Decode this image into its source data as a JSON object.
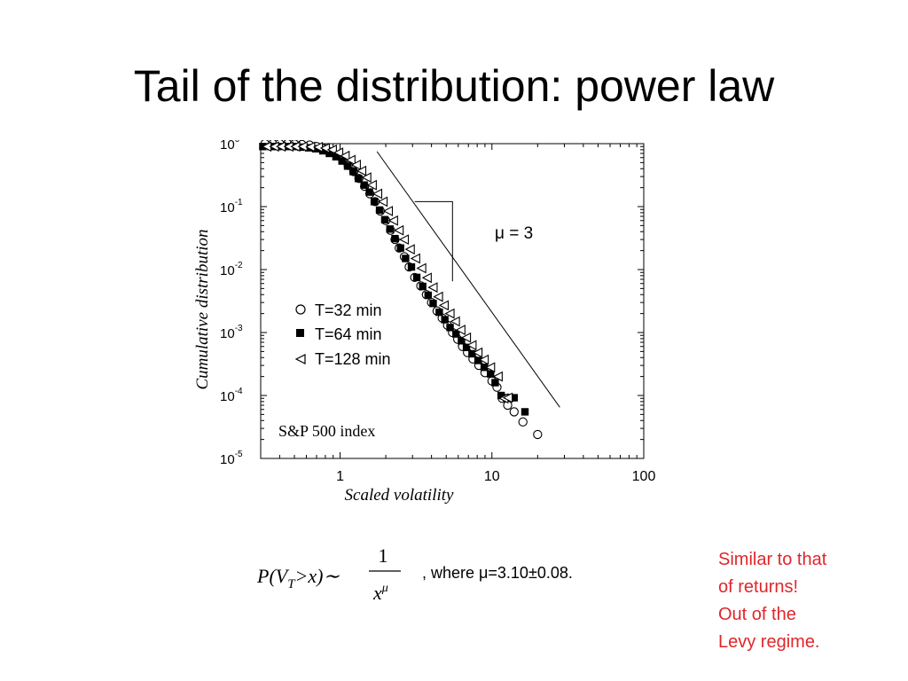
{
  "slide": {
    "title": "Tail of the distribution: power law"
  },
  "chart_data": {
    "type": "scatter",
    "xlabel": "Scaled volatility",
    "ylabel": "Cumulative distribution",
    "x_scale": "log",
    "y_scale": "log",
    "xlim": [
      0.3,
      100
    ],
    "ylim": [
      1e-05,
      1
    ],
    "x_ticks": [
      "1",
      "10",
      "100"
    ],
    "y_ticks": [
      {
        "base": "10",
        "exp": "0"
      },
      {
        "base": "10",
        "exp": "-1"
      },
      {
        "base": "10",
        "exp": "-2"
      },
      {
        "base": "10",
        "exp": "-3"
      },
      {
        "base": "10",
        "exp": "-4"
      },
      {
        "base": "10",
        "exp": "-5"
      }
    ],
    "grid": false,
    "legend_position": "left-center",
    "annotation_label": "S&P 500 index",
    "slope_label": "μ = 3",
    "reference_line": {
      "points": [
        [
          1.75,
          0.75
        ],
        [
          28.0,
          6.5e-05
        ]
      ]
    },
    "slope_triangle": {
      "points": [
        [
          3.1,
          0.12
        ],
        [
          5.5,
          0.12
        ],
        [
          5.5,
          0.0065
        ]
      ]
    },
    "series": [
      {
        "name": "T=32 min",
        "marker": "circle-open",
        "x": [
          0.32,
          0.36,
          0.4,
          0.45,
          0.5,
          0.56,
          0.63,
          0.7,
          0.78,
          0.86,
          0.95,
          1.04,
          1.13,
          1.23,
          1.33,
          1.45,
          1.57,
          1.7,
          1.84,
          2.0,
          2.15,
          2.3,
          2.45,
          2.65,
          2.85,
          3.1,
          3.4,
          3.7,
          4.0,
          4.35,
          4.7,
          5.1,
          5.5,
          5.95,
          6.4,
          6.9,
          7.5,
          8.2,
          9.0,
          10.0,
          10.8,
          11.7,
          12.7,
          14.0,
          16.0,
          20.0
        ],
        "y": [
          1.0,
          1.0,
          1.0,
          1.0,
          0.99,
          0.97,
          0.95,
          0.9,
          0.83,
          0.74,
          0.64,
          0.55,
          0.45,
          0.36,
          0.28,
          0.21,
          0.16,
          0.12,
          0.085,
          0.06,
          0.042,
          0.03,
          0.022,
          0.016,
          0.011,
          0.0075,
          0.0055,
          0.004,
          0.003,
          0.0022,
          0.0017,
          0.0013,
          0.001,
          0.00078,
          0.0006,
          0.00048,
          0.00038,
          0.0003,
          0.00023,
          0.00017,
          0.000135,
          9e-05,
          7e-05,
          5.5e-05,
          3.8e-05,
          2.4e-05
        ]
      },
      {
        "name": "T=64 min",
        "marker": "square-filled",
        "x": [
          0.31,
          0.35,
          0.39,
          0.44,
          0.49,
          0.55,
          0.62,
          0.69,
          0.77,
          0.85,
          0.94,
          1.03,
          1.12,
          1.22,
          1.32,
          1.44,
          1.56,
          1.68,
          1.82,
          1.97,
          2.13,
          2.3,
          2.5,
          2.7,
          2.95,
          3.2,
          3.5,
          3.8,
          4.1,
          4.5,
          4.9,
          5.3,
          5.8,
          6.3,
          6.8,
          7.4,
          8.1,
          8.9,
          9.8,
          10.5,
          11.5,
          12.5,
          13.2,
          14.0,
          16.5
        ],
        "y": [
          0.9,
          0.9,
          0.9,
          0.9,
          0.9,
          0.88,
          0.86,
          0.83,
          0.77,
          0.7,
          0.62,
          0.53,
          0.44,
          0.36,
          0.28,
          0.22,
          0.17,
          0.12,
          0.088,
          0.062,
          0.044,
          0.031,
          0.022,
          0.015,
          0.011,
          0.0075,
          0.0054,
          0.0039,
          0.0029,
          0.0021,
          0.0016,
          0.0012,
          0.00095,
          0.00074,
          0.00058,
          0.00046,
          0.00036,
          0.00028,
          0.00022,
          0.00016,
          0.0001,
          9.2e-05,
          9.2e-05,
          9.2e-05,
          5.5e-05
        ]
      },
      {
        "name": "T=128 min",
        "marker": "triangle-left-open",
        "x": [
          0.33,
          0.37,
          0.41,
          0.46,
          0.51,
          0.57,
          0.64,
          0.72,
          0.8,
          0.89,
          0.98,
          1.08,
          1.18,
          1.28,
          1.39,
          1.5,
          1.63,
          1.77,
          1.92,
          2.08,
          2.25,
          2.45,
          2.65,
          2.9,
          3.15,
          3.45,
          3.75,
          4.1,
          4.45,
          4.85,
          5.3,
          5.75,
          6.25,
          6.8,
          7.4,
          8.1,
          8.9,
          9.8,
          11.0,
          12.0,
          12.8
        ],
        "y": [
          0.9,
          0.9,
          0.9,
          0.9,
          0.9,
          0.9,
          0.89,
          0.88,
          0.85,
          0.8,
          0.72,
          0.64,
          0.55,
          0.46,
          0.37,
          0.29,
          0.22,
          0.16,
          0.12,
          0.085,
          0.06,
          0.042,
          0.03,
          0.021,
          0.015,
          0.0105,
          0.0074,
          0.0052,
          0.0037,
          0.0027,
          0.002,
          0.0015,
          0.0011,
          0.00083,
          0.00063,
          0.00048,
          0.00037,
          0.00028,
          0.0002,
          9e-05,
          9.2e-05
        ]
      }
    ]
  },
  "formula": {
    "lhs": "P(V",
    "lhs_sub": "T",
    "lhs_rest": ">x)∼",
    "numerator": "1",
    "denominator": "x",
    "denominator_exp": "μ",
    "where_text": ", where μ=3.10±0.08."
  },
  "side_note": {
    "color": "#e0262b",
    "lines": [
      "Similar to that",
      "of returns!",
      "Out of the",
      "Levy regime."
    ]
  }
}
